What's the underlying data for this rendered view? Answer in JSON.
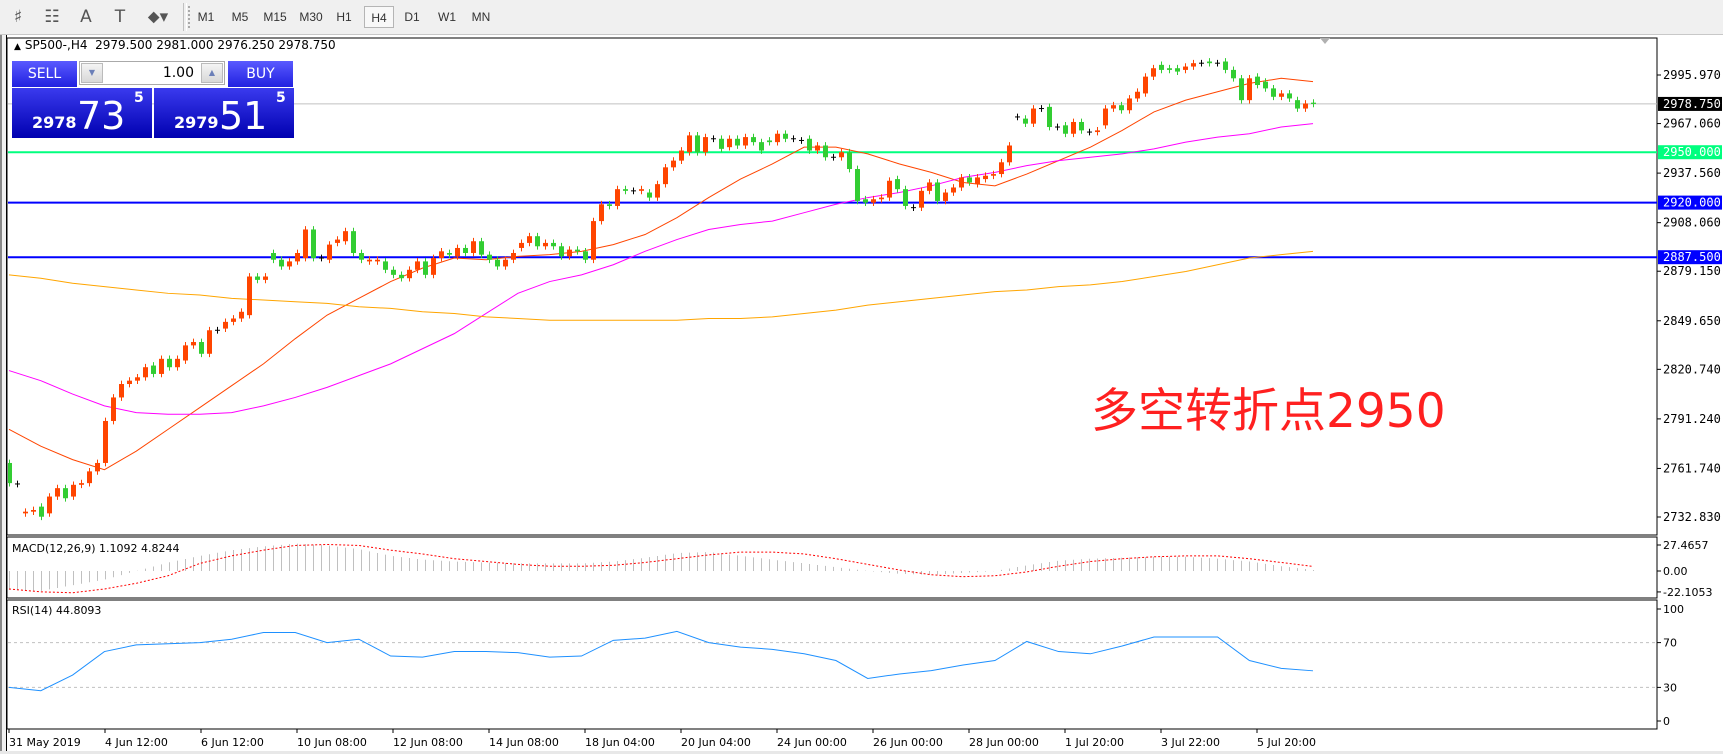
{
  "toolbar": {
    "tools": [
      {
        "icon": "elliott-wave-icon",
        "glyph": "♯"
      },
      {
        "icon": "fibonacci-icon",
        "glyph": "☷"
      },
      {
        "icon": "text-icon",
        "glyph": "A"
      },
      {
        "icon": "text-label-icon",
        "glyph": "T"
      },
      {
        "icon": "arrows-icon",
        "glyph": "⬥▾"
      }
    ],
    "timeframes": [
      "M1",
      "M5",
      "M15",
      "M30",
      "H1",
      "H4",
      "D1",
      "W1",
      "MN"
    ],
    "active_timeframe": "H4"
  },
  "header": {
    "symbol": "SP500-,H4",
    "open": "2979.500",
    "high": "2981.000",
    "low": "2976.250",
    "close": "2978.750"
  },
  "trade_panel": {
    "sell_label": "SELL",
    "buy_label": "BUY",
    "lot": "1.00",
    "sell_price": {
      "prefix": "2978",
      "big": "73",
      "sup": "5"
    },
    "buy_price": {
      "prefix": "2979",
      "big": "51",
      "sup": "5"
    }
  },
  "annotation": "多空转折点2950",
  "colors": {
    "bull": "#ff4500",
    "bear": "#32cd32",
    "doji": "#000000",
    "ma_fast": "#ff4500",
    "ma_mid": "#ff00ff",
    "ma_slow": "#ffa500",
    "level_green": "#00ff7f",
    "level_blue": "#0000ff",
    "bid_line": "#c0c0c0",
    "macd_hist": "#c0c0c0",
    "macd_signal": "#ff0000",
    "rsi": "#1e90ff",
    "annotation": "#ff2020"
  },
  "chart_data": {
    "type": "candlestick",
    "price_axis": {
      "ticks": [
        "2995.970",
        "2967.060",
        "2937.560",
        "2908.060",
        "2879.150",
        "2849.650",
        "2820.740",
        "2791.240",
        "2761.740",
        "2732.830"
      ],
      "range": [
        2732.83,
        2995.97
      ]
    },
    "current_price": {
      "value": 2978.75,
      "label": "2978.750"
    },
    "levels": [
      {
        "value": 2950.0,
        "label": "2950.000",
        "color": "#00ff7f"
      },
      {
        "value": 2920.0,
        "label": "2920.000",
        "color": "#0000ff"
      },
      {
        "value": 2887.5,
        "label": "2887.500",
        "color": "#0000ff"
      }
    ],
    "time_labels": [
      "31 May 2019",
      "4 Jun 12:00",
      "6 Jun 12:00",
      "10 Jun 08:00",
      "12 Jun 08:00",
      "14 Jun 08:00",
      "18 Jun 04:00",
      "20 Jun 04:00",
      "24 Jun 00:00",
      "26 Jun 00:00",
      "28 Jun 00:00",
      "1 Jul 20:00",
      "3 Jul 22:00",
      "5 Jul 20:00"
    ],
    "candles_open_close": [
      [
        2765,
        2753
      ],
      [
        2752.5,
        2752.5
      ],
      [
        2735,
        2736
      ],
      [
        2736,
        2737
      ],
      [
        2739,
        2733
      ],
      [
        2735,
        2745
      ],
      [
        2745,
        2750
      ],
      [
        2750,
        2744
      ],
      [
        2745,
        2752
      ],
      [
        2752,
        2753
      ],
      [
        2753,
        2760
      ],
      [
        2760,
        2765
      ],
      [
        2765,
        2790
      ],
      [
        2790,
        2804
      ],
      [
        2804,
        2812
      ],
      [
        2812,
        2814
      ],
      [
        2814,
        2816
      ],
      [
        2816,
        2822
      ],
      [
        2823,
        2818
      ],
      [
        2818,
        2827
      ],
      [
        2827,
        2822
      ],
      [
        2822,
        2827
      ],
      [
        2826,
        2835
      ],
      [
        2835,
        2837
      ],
      [
        2837,
        2830
      ],
      [
        2830,
        2844
      ],
      [
        2844,
        2844
      ],
      [
        2845,
        2849
      ],
      [
        2849,
        2851
      ],
      [
        2851,
        2855
      ],
      [
        2853,
        2876
      ],
      [
        2876,
        2874
      ],
      [
        2874,
        2876
      ],
      [
        2890,
        2886
      ],
      [
        2886,
        2882
      ],
      [
        2882,
        2885
      ],
      [
        2885,
        2890
      ],
      [
        2887,
        2904
      ],
      [
        2904,
        2887
      ],
      [
        2887,
        2887
      ],
      [
        2886,
        2895
      ],
      [
        2896,
        2898
      ],
      [
        2897,
        2903
      ],
      [
        2903,
        2890
      ],
      [
        2890,
        2886
      ],
      [
        2885,
        2886
      ],
      [
        2885,
        2886
      ],
      [
        2885,
        2880
      ],
      [
        2880,
        2877
      ],
      [
        2877,
        2875
      ],
      [
        2875,
        2880
      ],
      [
        2880,
        2885
      ],
      [
        2885,
        2877
      ],
      [
        2877,
        2887
      ],
      [
        2887,
        2891
      ],
      [
        2890,
        2889
      ],
      [
        2888,
        2893
      ],
      [
        2893,
        2890
      ],
      [
        2890,
        2897
      ],
      [
        2897,
        2889
      ],
      [
        2889,
        2886
      ],
      [
        2886,
        2882
      ],
      [
        2882,
        2886
      ],
      [
        2886,
        2890
      ],
      [
        2893,
        2896
      ],
      [
        2896,
        2900
      ],
      [
        2900,
        2894
      ],
      [
        2894,
        2896
      ],
      [
        2896,
        2894
      ],
      [
        2894,
        2888
      ],
      [
        2888,
        2892
      ],
      [
        2892,
        2891
      ],
      [
        2891,
        2886
      ],
      [
        2886,
        2909
      ],
      [
        2909,
        2919
      ],
      [
        2919,
        2918
      ],
      [
        2918,
        2928
      ],
      [
        2928,
        2927
      ],
      [
        2927,
        2927
      ],
      [
        2927,
        2928
      ],
      [
        2926,
        2923
      ],
      [
        2923,
        2931
      ],
      [
        2931,
        2941
      ],
      [
        2941,
        2945
      ],
      [
        2945,
        2951
      ],
      [
        2950,
        2960
      ],
      [
        2960,
        2950
      ],
      [
        2950,
        2959
      ],
      [
        2958,
        2958
      ],
      [
        2958,
        2952
      ],
      [
        2953,
        2958
      ],
      [
        2958,
        2954
      ],
      [
        2954,
        2959
      ],
      [
        2959,
        2956
      ],
      [
        2956,
        2951
      ],
      [
        2957,
        2956
      ],
      [
        2956,
        2961
      ],
      [
        2961,
        2958
      ],
      [
        2958,
        2958
      ],
      [
        2957,
        2957
      ],
      [
        2958,
        2951
      ],
      [
        2951,
        2954
      ],
      [
        2954,
        2947
      ],
      [
        2947,
        2947
      ],
      [
        2947,
        2950
      ],
      [
        2950,
        2940
      ],
      [
        2940,
        2921
      ],
      [
        2922,
        2920
      ],
      [
        2920,
        2922
      ],
      [
        2922,
        2923
      ],
      [
        2923,
        2933
      ],
      [
        2934,
        2928
      ],
      [
        2928,
        2918
      ],
      [
        2917,
        2917
      ],
      [
        2917,
        2927
      ],
      [
        2927,
        2932
      ],
      [
        2932,
        2921
      ],
      [
        2921,
        2926
      ],
      [
        2926,
        2929
      ],
      [
        2929,
        2935
      ],
      [
        2935,
        2932
      ],
      [
        2931,
        2935
      ],
      [
        2934,
        2936
      ],
      [
        2936,
        2937
      ],
      [
        2937,
        2944
      ],
      [
        2944,
        2954
      ],
      [
        2971,
        2971
      ],
      [
        2970,
        2967
      ],
      [
        2967,
        2976
      ],
      [
        2976,
        2976
      ],
      [
        2977,
        2965
      ],
      [
        2965,
        2965
      ],
      [
        2966,
        2961
      ],
      [
        2961,
        2968
      ],
      [
        2968,
        2963
      ],
      [
        2962,
        2962
      ],
      [
        2962,
        2963
      ],
      [
        2966,
        2976
      ],
      [
        2976,
        2978
      ],
      [
        2978,
        2975
      ],
      [
        2975,
        2982
      ],
      [
        2982,
        2986
      ],
      [
        2985,
        2995
      ],
      [
        2995,
        3000
      ],
      [
        3002,
        2999
      ],
      [
        3000,
        2999
      ],
      [
        3000,
        2998
      ],
      [
        2999,
        3001
      ],
      [
        3001,
        3003
      ],
      [
        3003,
        3003
      ],
      [
        3004,
        3003
      ],
      [
        3003,
        3003
      ],
      [
        3004,
        2999
      ],
      [
        2999,
        2994
      ],
      [
        2994,
        2981
      ],
      [
        2981,
        2994
      ],
      [
        2995,
        2990
      ],
      [
        2992,
        2988
      ],
      [
        2988,
        2983
      ],
      [
        2983,
        2985
      ],
      [
        2985,
        2982
      ],
      [
        2981,
        2976
      ],
      [
        2976,
        2979
      ],
      [
        2979.5,
        2978.75
      ]
    ],
    "moving_averages": [
      {
        "color": "#ff4500",
        "values": [
          2785,
          2775,
          2767,
          2761,
          2772,
          2785,
          2798,
          2811,
          2824,
          2839,
          2853,
          2863,
          2873,
          2881,
          2887,
          2886,
          2888,
          2889,
          2891,
          2895,
          2901,
          2911,
          2923,
          2934,
          2943,
          2953,
          2953,
          2949,
          2943,
          2938,
          2932,
          2930,
          2937,
          2945,
          2953,
          2963,
          2974,
          2981,
          2986,
          2991,
          2994,
          2992
        ]
      },
      {
        "color": "#ff00ff",
        "values": [
          2820,
          2814,
          2806,
          2799,
          2795,
          2794,
          2794,
          2795,
          2799,
          2804,
          2810,
          2817,
          2824,
          2833,
          2842,
          2854,
          2866,
          2873,
          2877,
          2883,
          2891,
          2898,
          2904,
          2907,
          2909,
          2914,
          2919,
          2923,
          2926,
          2930,
          2935,
          2938,
          2942,
          2945,
          2947,
          2949,
          2952,
          2956,
          2959,
          2961,
          2965,
          2967
        ]
      },
      {
        "color": "#ffa500",
        "values": [
          2877,
          2875,
          2872,
          2870,
          2868,
          2866,
          2865,
          2863,
          2862,
          2861,
          2860,
          2858,
          2857,
          2855,
          2854,
          2852,
          2851,
          2850,
          2850,
          2850,
          2850,
          2850,
          2851,
          2851,
          2852,
          2854,
          2856,
          2859,
          2861,
          2863,
          2865,
          2867,
          2868,
          2870,
          2871,
          2873,
          2876,
          2879,
          2883,
          2887,
          2889,
          2891
        ]
      }
    ],
    "macd": {
      "label": "MACD(12,26,9) 1.1092 4.8244",
      "ticks": [
        "27.4657",
        "0.00",
        "-22.1053"
      ],
      "histogram": [
        -20,
        -21,
        -15,
        -9,
        0,
        9,
        16,
        22,
        26,
        29,
        27,
        23,
        16,
        12,
        10,
        9,
        8,
        8,
        8,
        10,
        14,
        19,
        20,
        16,
        12,
        8,
        4,
        0,
        -3,
        -4,
        -2,
        0,
        6,
        11,
        13,
        14,
        15,
        15,
        13,
        10,
        5,
        1.1092
      ],
      "signal": [
        -19,
        -22,
        -23,
        -19,
        -13,
        -5,
        8,
        16,
        22,
        27,
        28,
        27,
        22,
        18,
        13,
        10,
        7,
        5,
        5,
        6,
        9,
        13,
        17,
        20,
        20,
        18,
        13,
        7,
        1,
        -4,
        -6,
        -5,
        -1,
        5,
        10,
        13,
        15,
        16,
        16,
        13,
        9,
        4.8244
      ]
    },
    "rsi": {
      "label": "RSI(14) 44.8093",
      "ticks": [
        "100",
        "70",
        "30",
        "0"
      ],
      "levels": [
        70,
        30
      ],
      "values": [
        30,
        27,
        41,
        62,
        68,
        69,
        70,
        73,
        79,
        79,
        70,
        73,
        58,
        57,
        62,
        62,
        61,
        57,
        58,
        72,
        74,
        80,
        70,
        66,
        64,
        60,
        54,
        38,
        42,
        45,
        50,
        54,
        71,
        62,
        60,
        67,
        75,
        75,
        75,
        54,
        47,
        44.8093
      ]
    }
  }
}
